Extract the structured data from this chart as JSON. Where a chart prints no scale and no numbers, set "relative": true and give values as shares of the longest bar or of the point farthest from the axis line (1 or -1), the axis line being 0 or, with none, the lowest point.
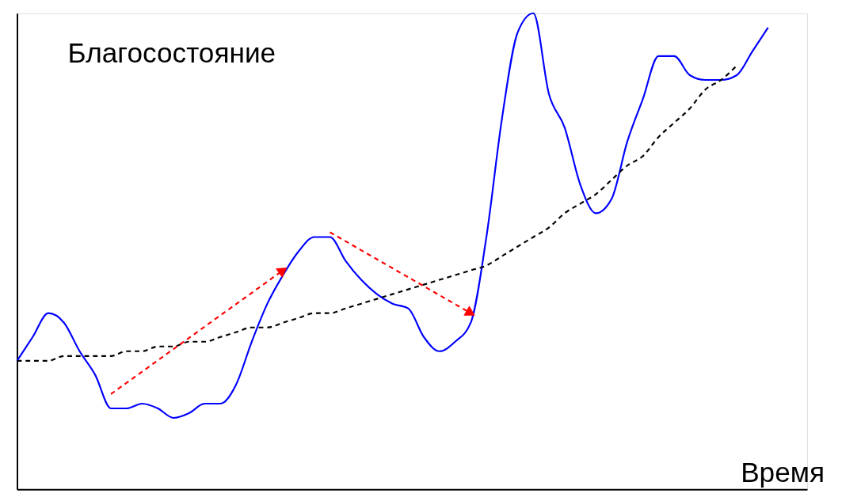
{
  "chart_data": {
    "type": "line",
    "relative": true,
    "xlabel": "Время",
    "ylabel": "Благосостояние",
    "grid": false,
    "tick_labels": false,
    "categories": [
      null,
      null,
      null,
      null,
      null,
      null,
      null,
      null,
      null,
      null,
      null,
      null,
      null,
      null,
      null,
      null,
      null,
      null,
      null,
      null,
      null,
      null,
      null,
      null,
      null,
      null,
      null,
      null,
      null,
      null,
      null,
      null,
      null,
      null,
      null,
      null,
      null,
      null,
      null,
      null,
      null,
      null,
      null,
      null,
      null,
      null,
      null,
      null,
      null
    ],
    "series": [
      {
        "color": "#0000ff",
        "line_style": "solid",
        "values": [
          0.27,
          0.32,
          0.37,
          0.35,
          0.29,
          0.24,
          0.17,
          0.17,
          0.18,
          0.17,
          0.15,
          0.16,
          0.18,
          0.18,
          0.22,
          0.31,
          0.39,
          0.45,
          0.5,
          0.53,
          0.53,
          0.48,
          0.44,
          0.41,
          0.39,
          0.38,
          0.32,
          0.29,
          0.31,
          0.35,
          0.53,
          0.78,
          0.96,
          1.0,
          0.83,
          0.76,
          0.64,
          0.58,
          0.61,
          0.73,
          0.82,
          0.91,
          0.91,
          0.87,
          0.86,
          0.86,
          0.87,
          0.92,
          0.97
        ]
      },
      {
        "color": "#000000",
        "line_style": "dashed",
        "values": [
          0.27,
          0.27,
          0.27,
          0.28,
          0.28,
          0.28,
          0.28,
          0.29,
          0.29,
          0.3,
          0.3,
          0.31,
          0.31,
          0.32,
          0.33,
          0.34,
          0.34,
          0.35,
          0.36,
          0.37,
          0.37,
          0.38,
          0.39,
          0.4,
          0.41,
          0.42,
          0.43,
          0.44,
          0.45,
          0.46,
          0.47,
          0.49,
          0.51,
          0.53,
          0.55,
          0.58,
          0.6,
          0.62,
          0.65,
          0.68,
          0.7,
          0.74,
          0.77,
          0.8,
          0.84,
          0.86,
          0.89,
          null,
          null
        ]
      },
      {
        "color": "#ff0000",
        "line_style": "dashed",
        "values": [
          null,
          null,
          null,
          null,
          null,
          null,
          0.2,
          null,
          null,
          null,
          null,
          null,
          null,
          null,
          null,
          null,
          null,
          0.46,
          null,
          null,
          null,
          null,
          null,
          null,
          null,
          null,
          null,
          null,
          null,
          null,
          null,
          null,
          null,
          null,
          null,
          null,
          null,
          null,
          null,
          null,
          null,
          null,
          null,
          null,
          null,
          null,
          null,
          null,
          null
        ]
      },
      {
        "color": "#ff0000",
        "line_style": "dashed",
        "values": [
          null,
          null,
          null,
          null,
          null,
          null,
          null,
          null,
          null,
          null,
          null,
          null,
          null,
          null,
          null,
          null,
          null,
          null,
          null,
          null,
          0.54,
          null,
          null,
          null,
          null,
          null,
          null,
          null,
          null,
          0.37,
          null,
          null,
          null,
          null,
          null,
          null,
          null,
          null,
          null,
          null,
          null,
          null,
          null,
          null,
          null,
          null,
          null,
          null,
          null
        ]
      }
    ]
  }
}
